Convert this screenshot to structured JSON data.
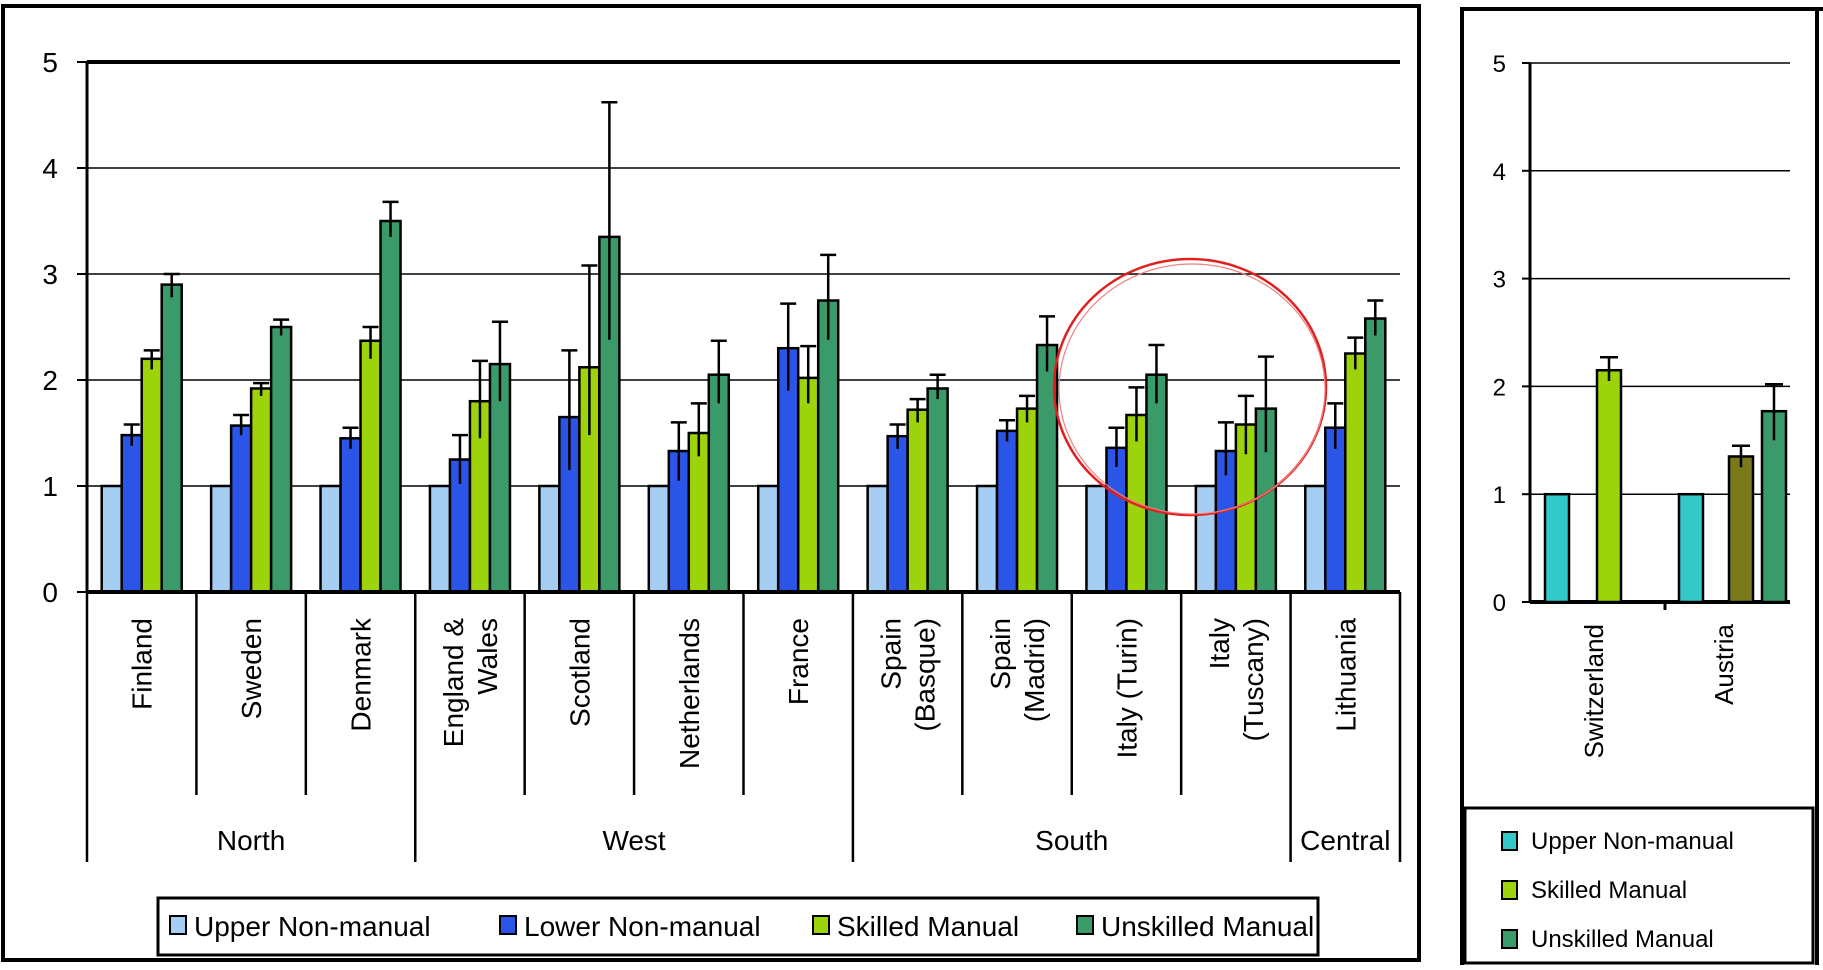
{
  "chart_data": [
    {
      "type": "bar",
      "title": "",
      "xlabel": "",
      "ylabel": "",
      "ylim": [
        0,
        5
      ],
      "yticks": [
        0,
        1,
        2,
        3,
        4,
        5
      ],
      "grid": true,
      "legend_position": "bottom",
      "categories": [
        "Finland",
        "Sweden",
        "Denmark",
        "England & Wales",
        "Scotland",
        "Netherlands",
        "France",
        "Spain (Basque)",
        "Spain (Madrid)",
        "Italy (Turin)",
        "Italy (Tuscany)",
        "Lithuania"
      ],
      "category_lines": [
        [
          "Finland"
        ],
        [
          "Sweden"
        ],
        [
          "Denmark"
        ],
        [
          "England &",
          "Wales"
        ],
        [
          "Scotland"
        ],
        [
          "Netherlands"
        ],
        [
          "France"
        ],
        [
          "Spain",
          "(Basque)"
        ],
        [
          "Spain",
          "(Madrid)"
        ],
        [
          "Italy (Turin)"
        ],
        [
          "Italy",
          "(Tuscany)"
        ],
        [
          "Lithuania"
        ]
      ],
      "groups": [
        {
          "name": "North",
          "categories": [
            "Finland",
            "Sweden",
            "Denmark"
          ]
        },
        {
          "name": "West",
          "categories": [
            "England & Wales",
            "Scotland",
            "Netherlands",
            "France"
          ]
        },
        {
          "name": "South",
          "categories": [
            "Spain (Basque)",
            "Spain (Madrid)",
            "Italy (Turin)",
            "Italy (Tuscany)"
          ]
        },
        {
          "name": "Central",
          "categories": [
            "Lithuania"
          ]
        }
      ],
      "series": [
        {
          "name": "Upper Non-manual",
          "color": "#a6cef3",
          "values": [
            1,
            1,
            1,
            1,
            1,
            1,
            1,
            1,
            1,
            1,
            1,
            1
          ],
          "err_low": [
            null,
            null,
            null,
            null,
            null,
            null,
            null,
            null,
            null,
            null,
            null,
            null
          ],
          "err_high": [
            null,
            null,
            null,
            null,
            null,
            null,
            null,
            null,
            null,
            null,
            null,
            null
          ]
        },
        {
          "name": "Lower Non-manual",
          "color": "#2b55e6",
          "values": [
            1.48,
            1.57,
            1.45,
            1.25,
            1.65,
            1.33,
            2.3,
            1.47,
            1.52,
            1.36,
            1.33,
            1.55
          ],
          "err_low": [
            1.38,
            1.48,
            1.35,
            1.02,
            1.15,
            1.05,
            1.9,
            1.35,
            1.42,
            1.18,
            1.1,
            1.35
          ],
          "err_high": [
            1.58,
            1.67,
            1.55,
            1.48,
            2.28,
            1.6,
            2.72,
            1.58,
            1.62,
            1.55,
            1.6,
            1.78
          ]
        },
        {
          "name": "Skilled Manual",
          "color": "#9cd30a",
          "values": [
            2.2,
            1.92,
            2.37,
            1.8,
            2.12,
            1.5,
            2.02,
            1.72,
            1.73,
            1.67,
            1.58,
            2.25
          ],
          "err_low": [
            2.1,
            1.85,
            2.2,
            1.45,
            1.48,
            1.28,
            1.78,
            1.6,
            1.6,
            1.42,
            1.3,
            2.1
          ],
          "err_high": [
            2.28,
            1.97,
            2.5,
            2.18,
            3.08,
            1.78,
            2.32,
            1.82,
            1.85,
            1.93,
            1.85,
            2.4
          ]
        },
        {
          "name": "Unskilled Manual",
          "color": "#3a9a6a",
          "values": [
            2.9,
            2.5,
            3.5,
            2.15,
            3.35,
            2.05,
            2.75,
            1.92,
            2.33,
            2.05,
            1.73,
            2.58
          ],
          "err_low": [
            2.78,
            2.42,
            3.35,
            1.8,
            2.38,
            1.78,
            2.38,
            1.82,
            2.08,
            1.78,
            1.32,
            2.42
          ],
          "err_high": [
            3.0,
            2.57,
            3.68,
            2.55,
            4.62,
            2.37,
            3.18,
            2.05,
            2.6,
            2.33,
            2.22,
            2.75
          ]
        }
      ]
    },
    {
      "type": "bar",
      "title": "",
      "xlabel": "",
      "ylabel": "",
      "ylim": [
        0,
        5
      ],
      "yticks": [
        0,
        1,
        2,
        3,
        4,
        5
      ],
      "grid": true,
      "legend_position": "bottom",
      "categories": [
        "Switzerland",
        "Austria"
      ],
      "legend": [
        {
          "name": "Upper Non-manual",
          "color": "#33c9c9"
        },
        {
          "name": "Skilled Manual",
          "color": "#9cd30a"
        },
        {
          "name": "Unskilled Manual",
          "color": "#3a9a6a"
        }
      ],
      "bars": [
        {
          "category": "Switzerland",
          "series": "Upper Non-manual",
          "value": 1,
          "color": "#33c9c9",
          "err_low": null,
          "err_high": null
        },
        {
          "category": "Switzerland",
          "series": "Skilled Manual",
          "value": 2.15,
          "color": "#9cd30a",
          "err_low": 2.05,
          "err_high": 2.27
        },
        {
          "category": "Austria",
          "series": "Upper Non-manual",
          "value": 1,
          "color": "#33c9c9",
          "err_low": null,
          "err_high": null
        },
        {
          "category": "Austria",
          "series": "",
          "value": 1.35,
          "color": "#7a7a1a",
          "err_low": 1.25,
          "err_high": 1.45
        },
        {
          "category": "Austria",
          "series": "Unskilled Manual",
          "value": 1.77,
          "color": "#3a9a6a",
          "err_low": 1.5,
          "err_high": 2.02
        }
      ]
    }
  ]
}
